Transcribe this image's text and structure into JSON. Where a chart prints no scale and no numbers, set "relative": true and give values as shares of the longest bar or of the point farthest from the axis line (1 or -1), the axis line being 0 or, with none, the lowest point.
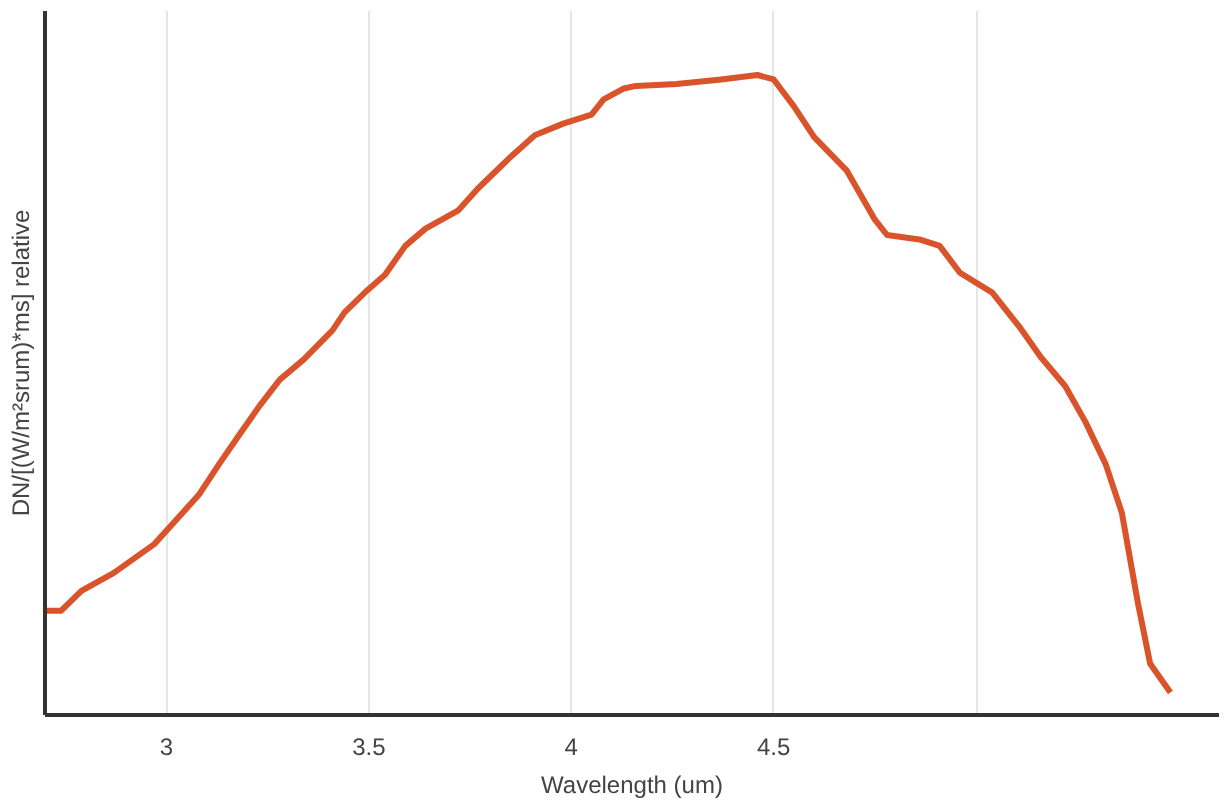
{
  "chart_data": {
    "type": "line",
    "xlabel": "Wavelength (um)",
    "ylabel": "DN/[(W/m²srum)*ms] relative",
    "relative": true,
    "xlim": [
      2.7,
      5.6
    ],
    "xticks": [
      3,
      3.5,
      4,
      4.5,
      {
        "value": 5,
        "label": null
      }
    ],
    "grid": "x",
    "marker": "none",
    "line_style": "solid",
    "series": [
      {
        "color": "#d9532b",
        "x": [
          2.7,
          2.74,
          2.79,
          2.87,
          2.97,
          3.03,
          3.08,
          3.13,
          3.18,
          3.23,
          3.28,
          3.34,
          3.41,
          3.44,
          3.49,
          3.54,
          3.59,
          3.64,
          3.72,
          3.77,
          3.85,
          3.91,
          3.98,
          4.05,
          4.08,
          4.13,
          4.16,
          4.26,
          4.37,
          4.46,
          4.5,
          4.55,
          4.6,
          4.68,
          4.75,
          4.78,
          4.86,
          4.91,
          4.96,
          5.04,
          5.11,
          5.16,
          5.22,
          5.27,
          5.32,
          5.36,
          5.4,
          5.43,
          5.48
        ],
        "values": [
          0.163,
          0.163,
          0.194,
          0.222,
          0.267,
          0.309,
          0.344,
          0.392,
          0.438,
          0.483,
          0.524,
          0.556,
          0.601,
          0.629,
          0.66,
          0.688,
          0.733,
          0.76,
          0.788,
          0.823,
          0.872,
          0.906,
          0.924,
          0.938,
          0.962,
          0.979,
          0.983,
          0.986,
          0.993,
          1.0,
          0.993,
          0.951,
          0.903,
          0.851,
          0.774,
          0.75,
          0.743,
          0.733,
          0.691,
          0.66,
          0.604,
          0.559,
          0.514,
          0.458,
          0.392,
          0.316,
          0.174,
          0.08,
          0.035
        ]
      }
    ]
  }
}
